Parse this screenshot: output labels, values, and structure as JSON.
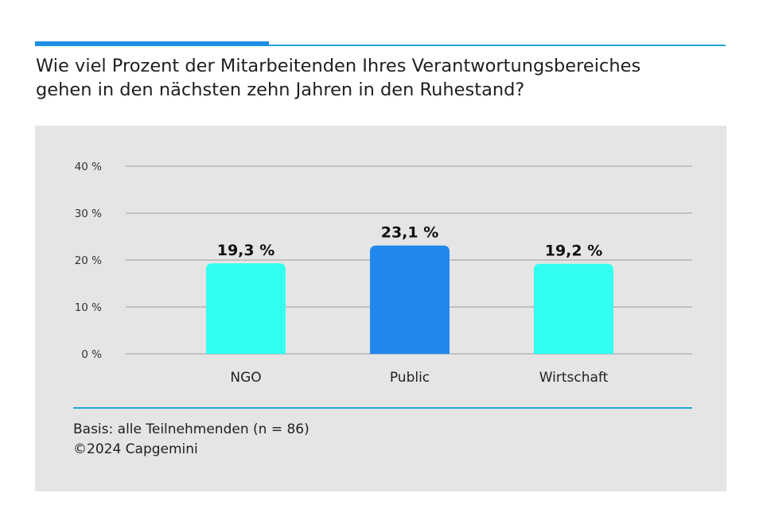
{
  "header": {
    "title_lines": [
      "Wie viel Prozent der Mitarbeitenden Ihres Verantwortungsbereiches",
      "gehen in den nächsten zehn Jahren in den Ruhestand?"
    ]
  },
  "chart_data": {
    "type": "bar",
    "categories": [
      "NGO",
      "Public",
      "Wirtschaft"
    ],
    "values": [
      19.3,
      23.1,
      19.2
    ],
    "value_labels": [
      "19,3 %",
      "23,1 %",
      "19,2 %"
    ],
    "ylim": [
      0,
      40
    ],
    "yticks": [
      0,
      10,
      20,
      30,
      40
    ],
    "ytick_labels": [
      "0 %",
      "10 %",
      "20 %",
      "30 %",
      "40 %"
    ],
    "grid": true,
    "colors": [
      "#33fff0",
      "#2288ee",
      "#33fff0"
    ]
  },
  "footer": {
    "basis": "Basis: alle Teilnehmenden (n = 86)",
    "copyright": "©2024 Capgemini"
  },
  "colors": {
    "accent": "#1c8ee6",
    "rule": "#21a7d8",
    "panel": "#e5e5e5",
    "grid": "#b5b5b5"
  }
}
